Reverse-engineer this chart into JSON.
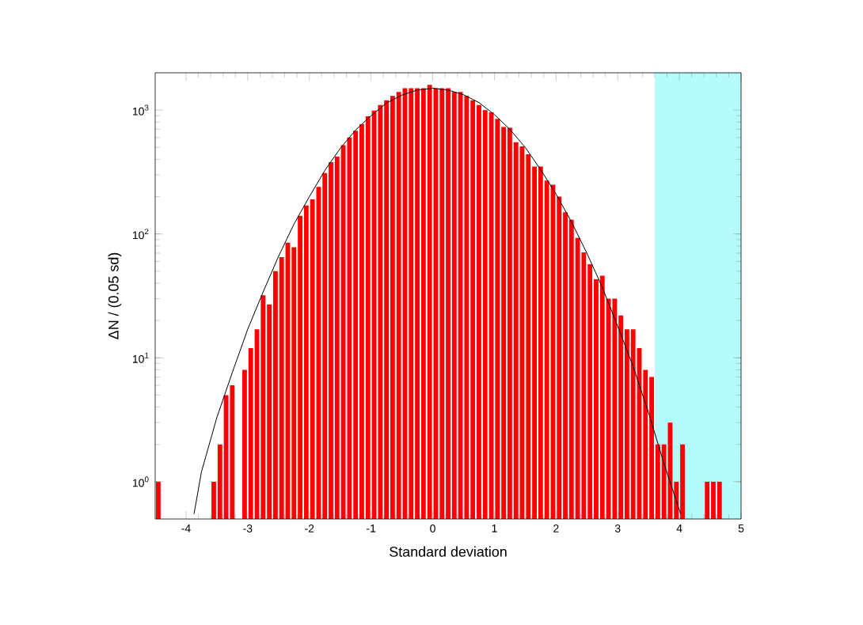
{
  "chart_data": {
    "type": "histogram",
    "xlabel": "Standard deviation",
    "ylabel": "ΔN / (0.05 sd)",
    "log": "y",
    "xlim": [
      -4.5,
      5
    ],
    "ylim": [
      0.5,
      2000
    ],
    "xticks": [
      -4,
      -3,
      -2,
      -1,
      0,
      1,
      2,
      3,
      4,
      5
    ],
    "yticks": [
      {
        "value": 1,
        "label": "10$^{0}$"
      },
      {
        "value": 10,
        "label": "10$^{1}$"
      },
      {
        "value": 100,
        "label": "10$^{2}$"
      },
      {
        "value": 1000,
        "label": "10$^{3}$"
      }
    ],
    "bins": [
      -4.5,
      -4.4,
      -4.3,
      -4.2,
      -4.1,
      -4.0,
      -3.9,
      -3.8,
      -3.7,
      -3.6,
      -3.5,
      -3.4,
      -3.3,
      -3.2,
      -3.1,
      -3.0,
      -2.9,
      -2.8,
      -2.7,
      -2.6,
      -2.5,
      -2.4,
      -2.3,
      -2.2,
      -2.1,
      -2.0,
      -1.9,
      -1.8,
      -1.7,
      -1.6,
      -1.5,
      -1.4,
      -1.3,
      -1.2,
      -1.1,
      -1.0,
      -0.9,
      -0.8,
      -0.7,
      -0.6,
      -0.5,
      -0.4,
      -0.3,
      -0.2,
      -0.1,
      0.0,
      0.1,
      0.2,
      0.3,
      0.4,
      0.5,
      0.6,
      0.7,
      0.8,
      0.9,
      1.0,
      1.1,
      1.2,
      1.3,
      1.4,
      1.5,
      1.6,
      1.7,
      1.8,
      1.9,
      2.0,
      2.1,
      2.2,
      2.3,
      2.4,
      2.5,
      2.6,
      2.7,
      2.8,
      2.9,
      3.0,
      3.1,
      3.2,
      3.3,
      3.4,
      3.5,
      3.6,
      3.7,
      3.8,
      3.9,
      4.0,
      4.1,
      4.2,
      4.3,
      4.4,
      4.5,
      4.6,
      4.7
    ],
    "bands": [
      {
        "axis": "x",
        "from": 3.6,
        "to": 5,
        "color": "#b5fbfb"
      }
    ],
    "series": [
      {
        "color": "#ff0000",
        "values": [
          1,
          null,
          null,
          null,
          null,
          null,
          null,
          null,
          null,
          1,
          2,
          5,
          6,
          null,
          8,
          12,
          17,
          32,
          27,
          50,
          65,
          85,
          78,
          140,
          170,
          190,
          240,
          310,
          380,
          420,
          520,
          600,
          680,
          770,
          890,
          990,
          1100,
          1200,
          1300,
          1400,
          1500,
          1500,
          1500,
          1500,
          1600,
          1500,
          1500,
          1500,
          1400,
          1400,
          1300,
          1200,
          1100,
          1000,
          960,
          850,
          730,
          720,
          550,
          510,
          440,
          350,
          350,
          270,
          250,
          200,
          150,
          130,
          93,
          71,
          57,
          43,
          46,
          30,
          30,
          22,
          17,
          17,
          12,
          8,
          7,
          2,
          2,
          3,
          1,
          2,
          null,
          null,
          null,
          1,
          1,
          1
        ]
      },
      {
        "type": "line",
        "color": "#000000",
        "x": [
          -3.87,
          -3.75,
          -3.5,
          -3.25,
          -3.0,
          -2.75,
          -2.5,
          -2.25,
          -2.0,
          -1.75,
          -1.5,
          -1.25,
          -1.0,
          -0.75,
          -0.5,
          -0.25,
          0.0,
          0.25,
          0.5,
          0.75,
          1.0,
          1.25,
          1.5,
          1.75,
          2.0,
          2.25,
          2.5,
          2.75,
          3.0,
          3.25,
          3.5,
          3.75,
          4.02
        ],
        "values": [
          0.55,
          1.2,
          3.3,
          7.6,
          17,
          34,
          66,
          120,
          200,
          325,
          490,
          690,
          900,
          1140,
          1320,
          1450,
          1500,
          1450,
          1330,
          1150,
          920,
          700,
          500,
          330,
          210,
          125,
          70,
          37,
          18,
          8.5,
          3.6,
          1.4,
          0.55
        ]
      }
    ]
  }
}
